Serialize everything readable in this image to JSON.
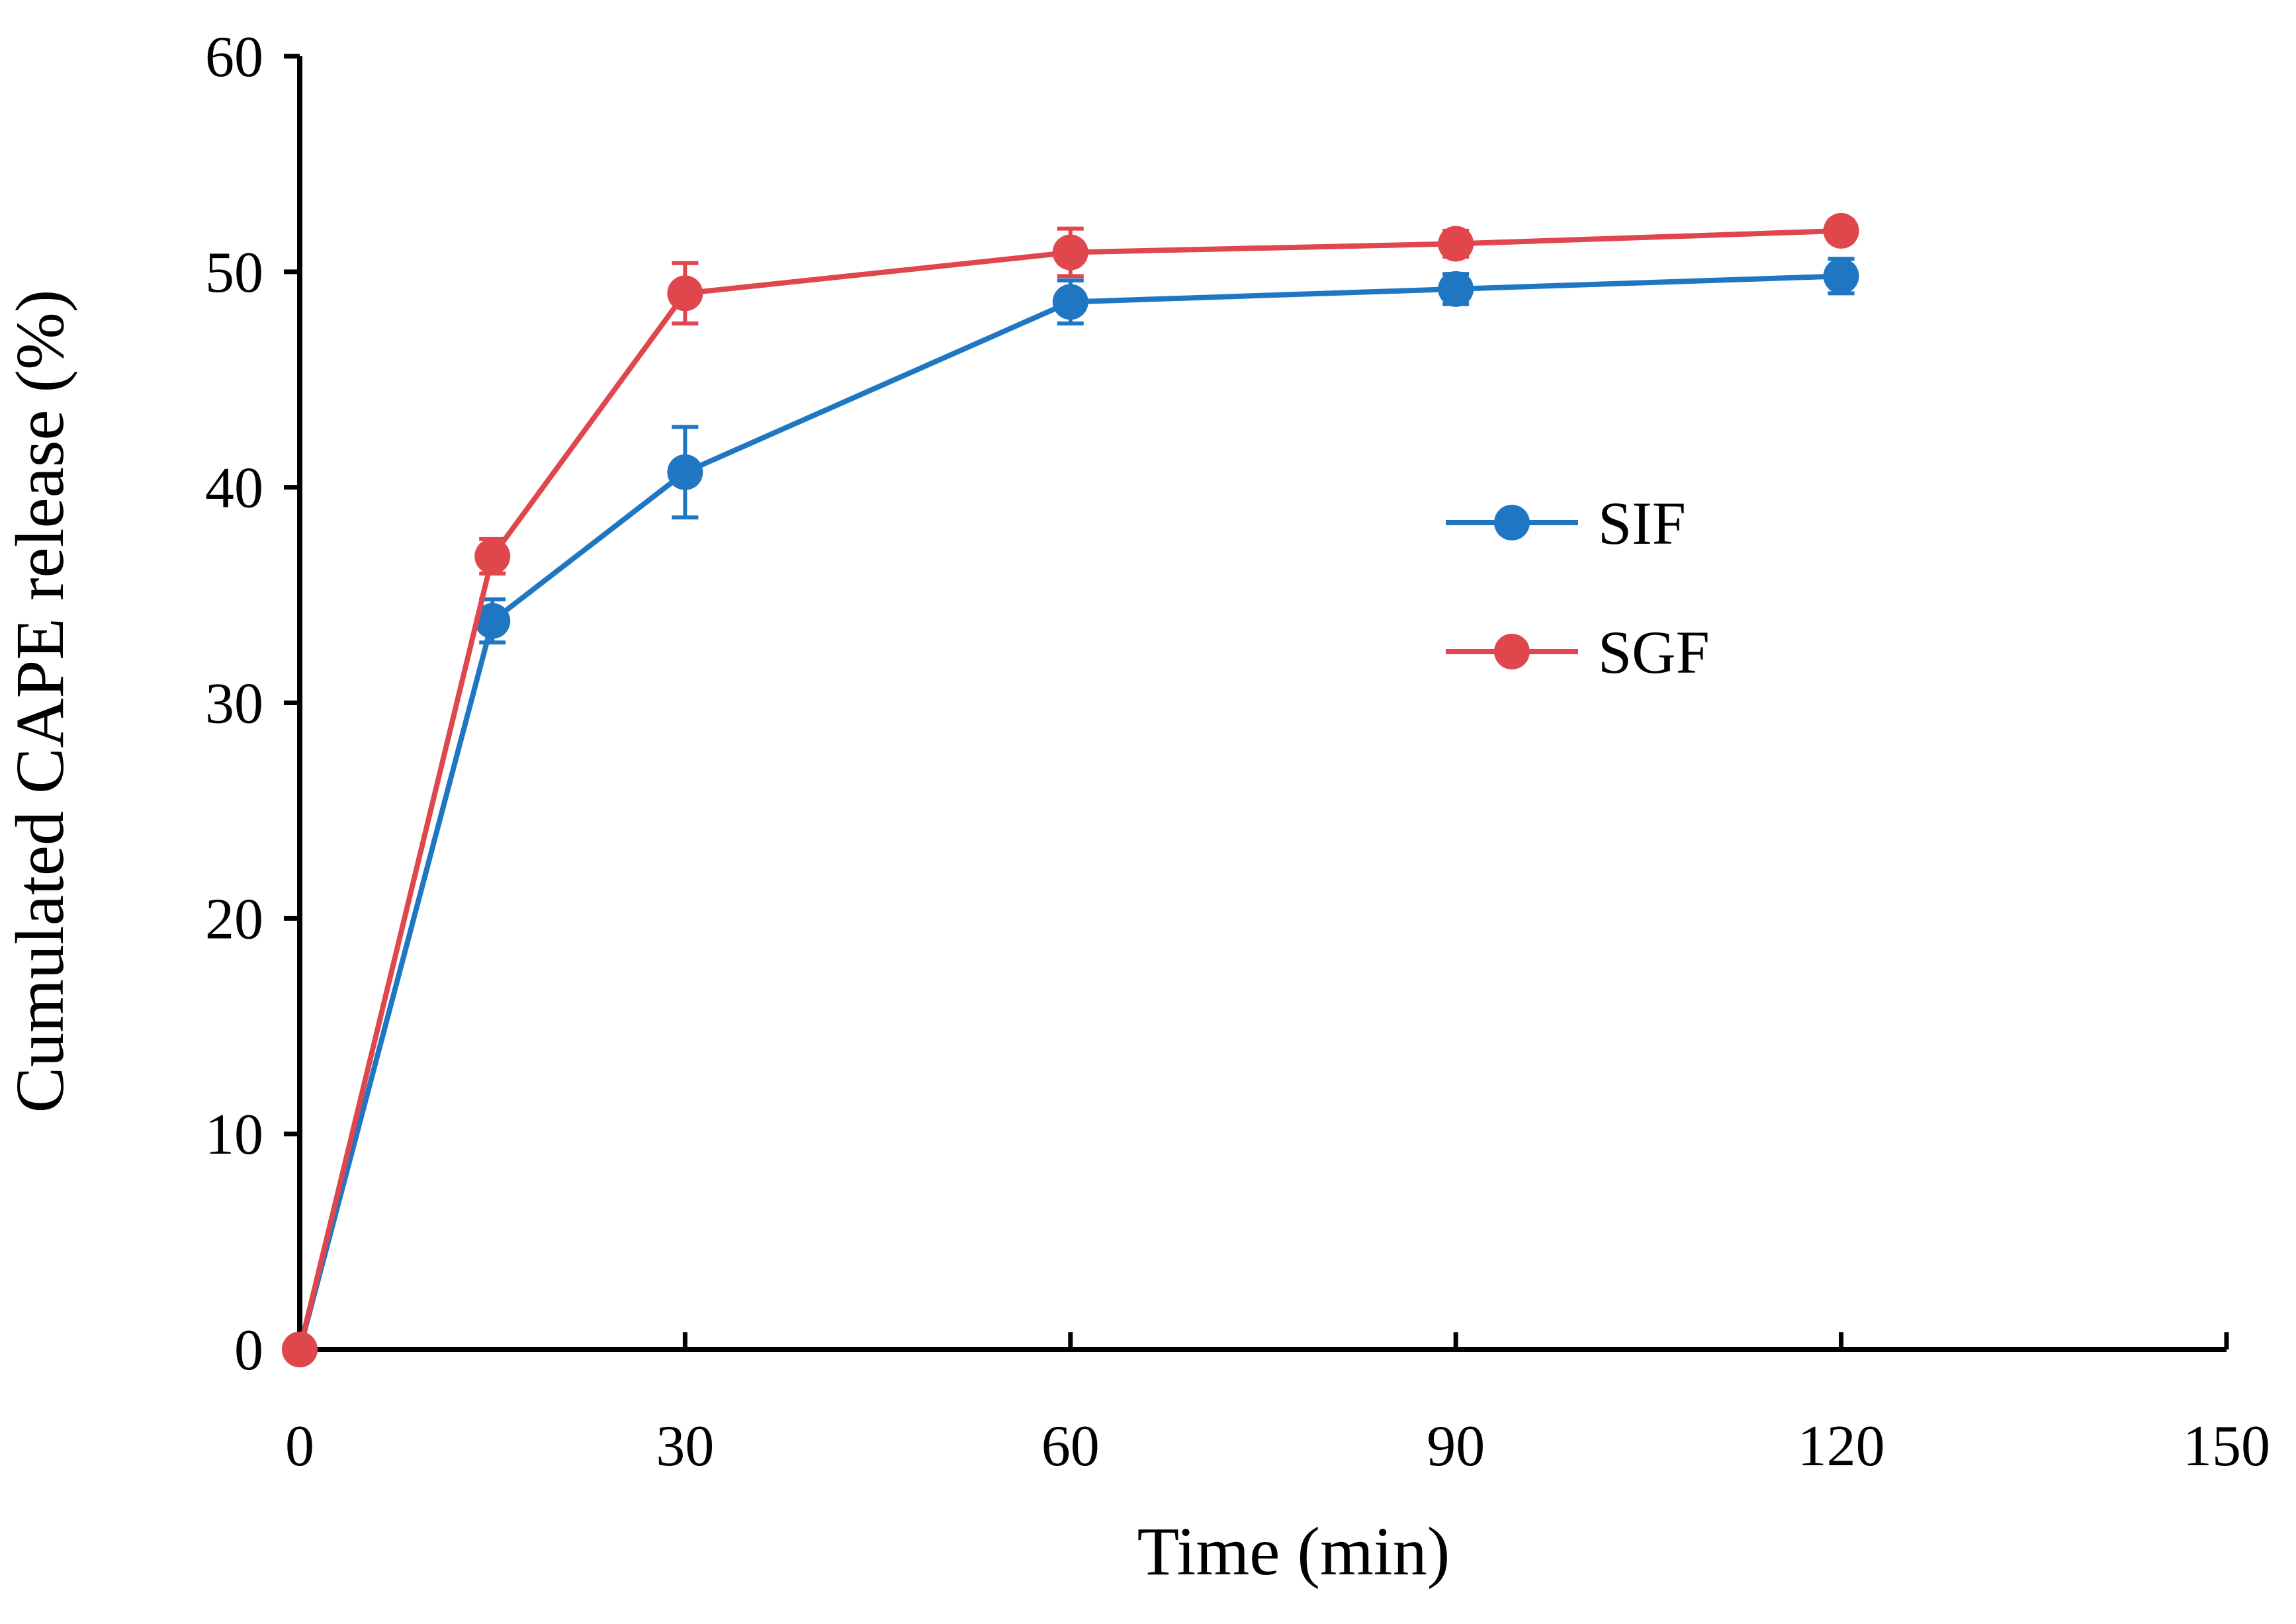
{
  "chart_data": {
    "type": "line",
    "title": "",
    "xlabel": "Time (min)",
    "ylabel": "Cumulated CAPE release (%)",
    "xlim": [
      0,
      150
    ],
    "ylim": [
      0,
      60
    ],
    "xticks": [
      0,
      30,
      60,
      90,
      120,
      150
    ],
    "yticks": [
      0,
      10,
      20,
      30,
      40,
      50,
      60
    ],
    "grid": false,
    "legend_position": "center-right",
    "series": [
      {
        "name": "SIF",
        "color": "#1f77c4",
        "x": [
          0,
          15,
          30,
          60,
          90,
          120
        ],
        "y": [
          0,
          33.8,
          40.7,
          48.6,
          49.2,
          49.8
        ],
        "error": [
          0,
          1.0,
          2.1,
          1.0,
          0.7,
          0.8
        ]
      },
      {
        "name": "SGF",
        "color": "#e0474c",
        "x": [
          0,
          15,
          30,
          60,
          90,
          120
        ],
        "y": [
          0,
          36.8,
          49.0,
          50.9,
          51.3,
          51.9
        ],
        "error": [
          0,
          0.8,
          1.4,
          1.1,
          0.6,
          0.5
        ]
      }
    ]
  }
}
